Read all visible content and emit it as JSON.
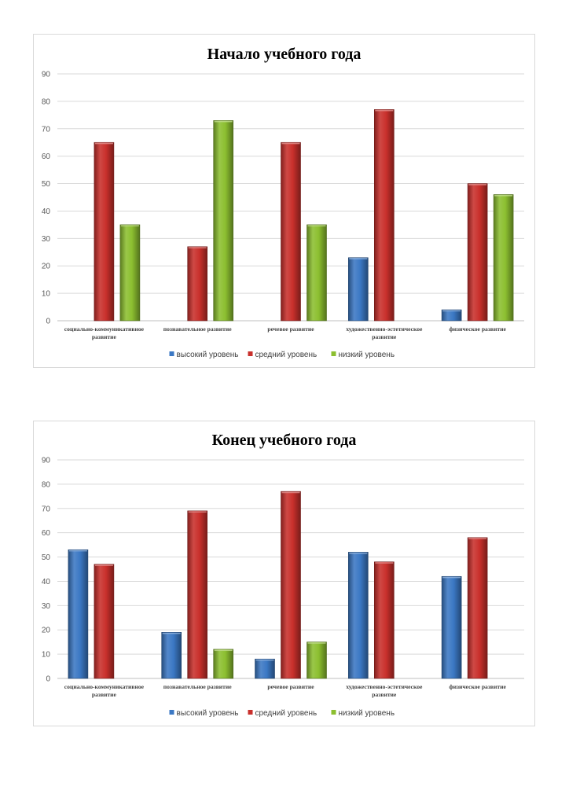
{
  "colors": {
    "high": "#3b78c4",
    "mid": "#c9302c",
    "low": "#8cbf30"
  },
  "chart_data": [
    {
      "type": "bar",
      "title": "Начало учебного года",
      "categories": [
        [
          "социально-коммуникативное",
          "развитие"
        ],
        [
          "познавательное развитие"
        ],
        [
          "речевое развитие"
        ],
        [
          "художественно-эстетическое",
          "развитие"
        ],
        [
          "физическое развитие"
        ]
      ],
      "series": [
        {
          "name": "высокий уровень",
          "values": [
            0,
            0,
            0,
            23,
            4
          ]
        },
        {
          "name": "средний уровень",
          "values": [
            65,
            27,
            65,
            77,
            50
          ]
        },
        {
          "name": "низкий уровень",
          "values": [
            35,
            73,
            35,
            0,
            46
          ]
        }
      ],
      "ylim": [
        0,
        90
      ],
      "yticks": [
        0,
        10,
        20,
        30,
        40,
        50,
        60,
        70,
        80,
        90
      ],
      "grid": true,
      "legend_position": "bottom"
    },
    {
      "type": "bar",
      "title": "Конец учебного года",
      "categories": [
        [
          "социально-коммуникативное",
          "развитие"
        ],
        [
          "познавательное развитие"
        ],
        [
          "речевое развитие"
        ],
        [
          "художественно-эстетическое",
          "развитие"
        ],
        [
          "физическое развитие"
        ]
      ],
      "series": [
        {
          "name": "высокий уровень",
          "values": [
            53,
            19,
            8,
            52,
            42
          ]
        },
        {
          "name": "средний уровень",
          "values": [
            47,
            69,
            77,
            48,
            58
          ]
        },
        {
          "name": "низкий уровень",
          "values": [
            0,
            12,
            15,
            0,
            0
          ]
        }
      ],
      "ylim": [
        0,
        90
      ],
      "yticks": [
        0,
        10,
        20,
        30,
        40,
        50,
        60,
        70,
        80,
        90
      ],
      "grid": true,
      "legend_position": "bottom"
    }
  ]
}
